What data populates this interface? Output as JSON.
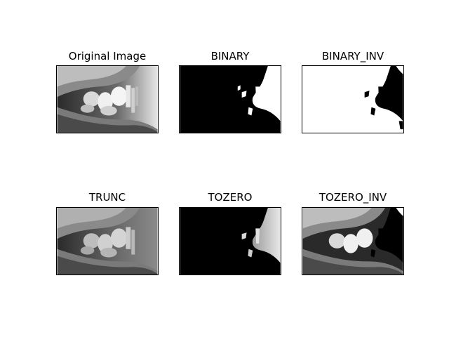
{
  "figure": {
    "panels": [
      {
        "title": "Original Image",
        "variant": "original"
      },
      {
        "title": "BINARY",
        "variant": "binary"
      },
      {
        "title": "BINARY_INV",
        "variant": "binary_inv"
      },
      {
        "title": "TRUNC",
        "variant": "trunc"
      },
      {
        "title": "TOZERO",
        "variant": "tozero"
      },
      {
        "title": "TOZERO_INV",
        "variant": "tozero_inv"
      }
    ]
  }
}
